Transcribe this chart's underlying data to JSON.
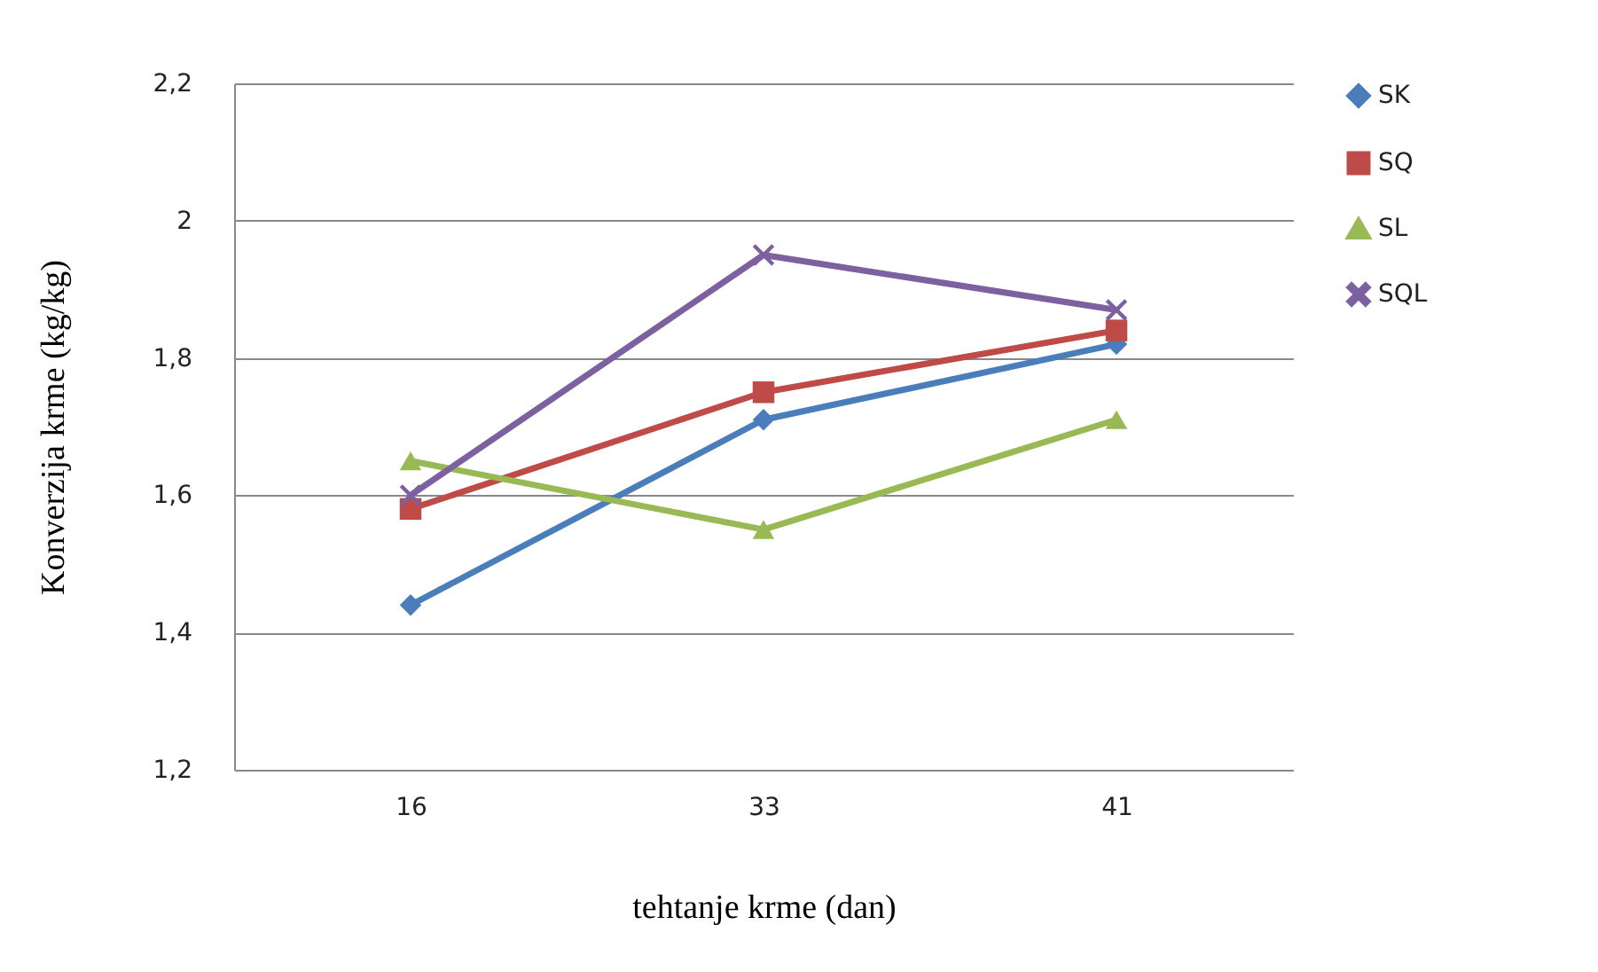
{
  "chart_data": {
    "type": "line",
    "xlabel": "tehtanje krme (dan)",
    "ylabel": "Konverzija krme (kg/kg)",
    "categories": [
      "16",
      "33",
      "41"
    ],
    "ylim": [
      1.2,
      2.2
    ],
    "yticks": [
      {
        "value": 1.2,
        "label": "1,2"
      },
      {
        "value": 1.4,
        "label": "1,4"
      },
      {
        "value": 1.6,
        "label": "1,6"
      },
      {
        "value": 1.8,
        "label": "1,8"
      },
      {
        "value": 2,
        "label": "2"
      },
      {
        "value": 2.2,
        "label": "2,2"
      }
    ],
    "grid": "y",
    "legend": "right",
    "series": [
      {
        "name": "SK",
        "color": "#4a7ebb",
        "marker": "diamond",
        "values": [
          1.44,
          1.71,
          1.82
        ]
      },
      {
        "name": "SQ",
        "color": "#be4b48",
        "marker": "square",
        "values": [
          1.58,
          1.75,
          1.84
        ]
      },
      {
        "name": "SL",
        "color": "#98b954",
        "marker": "triangle",
        "values": [
          1.65,
          1.55,
          1.71
        ]
      },
      {
        "name": "SQL",
        "color": "#7d60a0",
        "marker": "cross",
        "values": [
          1.6,
          1.95,
          1.87
        ]
      }
    ]
  }
}
